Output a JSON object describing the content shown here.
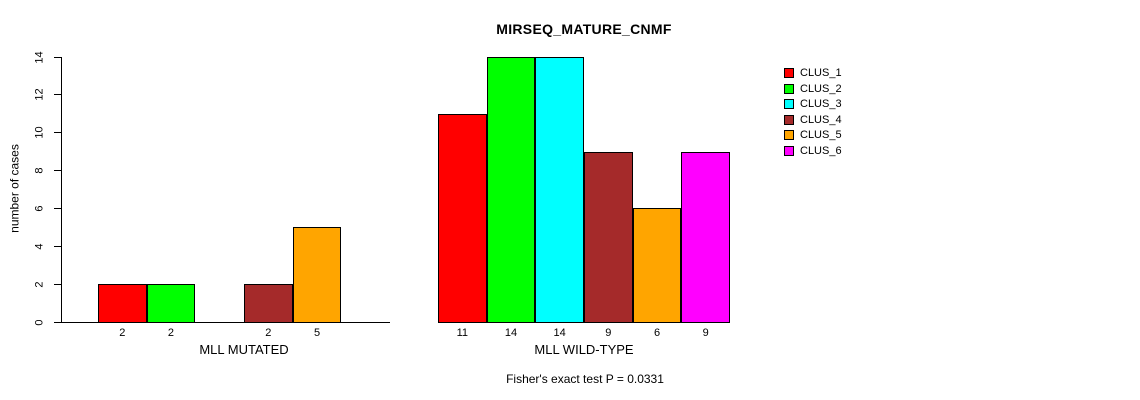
{
  "title": "MIRSEQ_MATURE_CNMF",
  "footer": "Fisher's exact test P = 0.0331",
  "y_axis": {
    "label": "number of cases"
  },
  "chart_data": {
    "type": "bar",
    "title": "MIRSEQ_MATURE_CNMF",
    "xlabel": "",
    "ylabel": "number of cases",
    "categories": [
      "MLL MUTATED",
      "MLL WILD-TYPE"
    ],
    "series": [
      {
        "name": "CLUS_1",
        "color": "#FF0000",
        "values": [
          2,
          11
        ]
      },
      {
        "name": "CLUS_2",
        "color": "#00FF00",
        "values": [
          2,
          14
        ]
      },
      {
        "name": "CLUS_3",
        "color": "#00FFFF",
        "values": [
          0,
          14
        ]
      },
      {
        "name": "CLUS_4",
        "color": "#A52A2A",
        "values": [
          2,
          9
        ]
      },
      {
        "name": "CLUS_5",
        "color": "#FFA500",
        "values": [
          5,
          6
        ]
      },
      {
        "name": "CLUS_6",
        "color": "#FF00FF",
        "values": [
          0,
          9
        ]
      }
    ],
    "ylim": [
      0,
      14
    ],
    "yticks": [
      0,
      2,
      4,
      6,
      8,
      10,
      12,
      14
    ],
    "bar_value_labels": "shown under each nonzero bar",
    "annotation": "Fisher's exact test P = 0.0331",
    "legend_position": "right",
    "grid": false
  }
}
